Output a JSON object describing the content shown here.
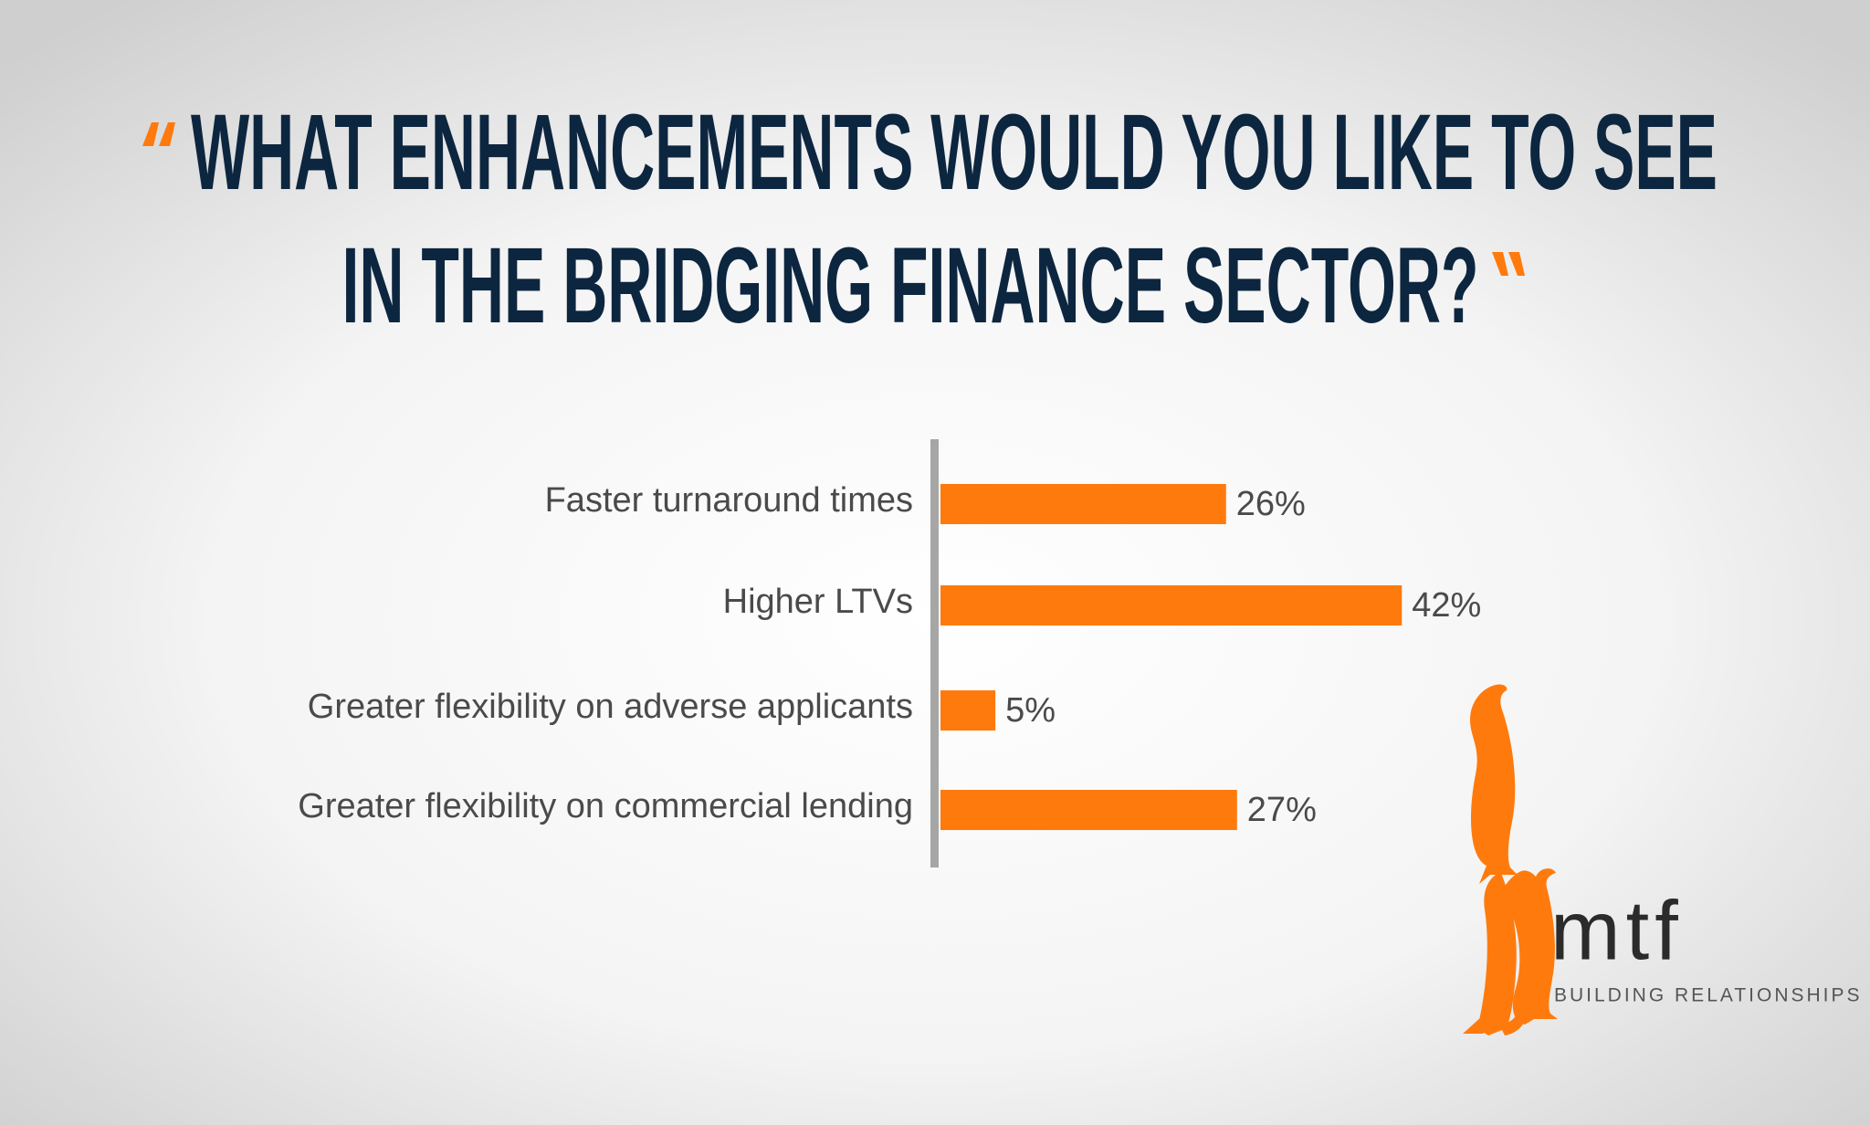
{
  "chart_data": {
    "type": "hbar",
    "title_lines": [
      "WHAT ENHANCEMENTS WOULD YOU LIKE TO SEE",
      "IN THE BRIDGING FINANCE SECTOR?"
    ],
    "categories": [
      "Faster turnaround times",
      "Higher LTVs",
      "Greater flexibility on adverse applicants",
      "Greater flexibility on commercial lending"
    ],
    "values": [
      26,
      42,
      5,
      27
    ],
    "value_labels": [
      "26%",
      "42%",
      "5%",
      "27%"
    ],
    "color": "#ff7a0d"
  },
  "logo": {
    "name": "mtf",
    "tagline": "BUILDING RELATIONSHIPS"
  }
}
